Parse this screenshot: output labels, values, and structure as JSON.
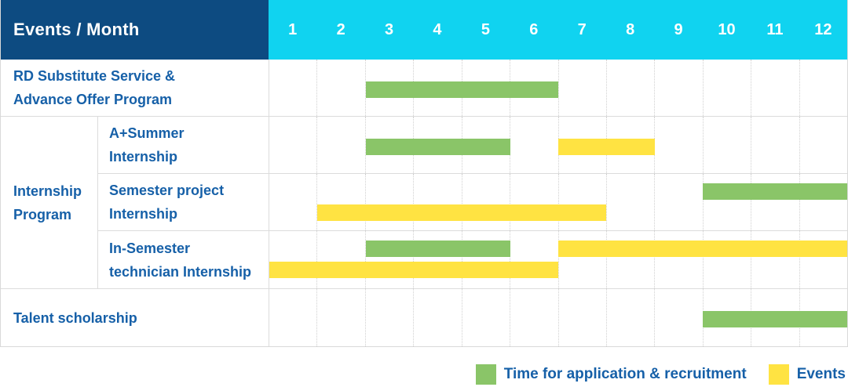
{
  "colors": {
    "header_bg": "#0d4b81",
    "months_bg": "#10d3f0",
    "label_text": "#1660a8",
    "green": "#8ac568",
    "yellow": "#ffe342",
    "grid": "#dcdcdc"
  },
  "header": {
    "title": "Events / Month",
    "months": [
      "1",
      "2",
      "3",
      "4",
      "5",
      "6",
      "7",
      "8",
      "9",
      "10",
      "11",
      "12"
    ]
  },
  "table": {
    "row_labels": {
      "rd": "RD Substitute Service &\nAdvance Offer Program",
      "internship_group": "Internship\nProgram",
      "a_plus_summer": "A+Summer\nInternship",
      "semester_project": "Semester project\nInternship",
      "in_semester": "In-Semester\ntechnician Internship",
      "talent": "Talent scholarship"
    }
  },
  "legend": {
    "items": [
      {
        "color": "green",
        "label": "Time for application & recruitment"
      },
      {
        "color": "yellow",
        "label": "Events"
      }
    ]
  },
  "chart_data": {
    "type": "gantt",
    "x_unit": "month",
    "x_range": [
      1,
      12
    ],
    "legend": {
      "green": "Time for application & recruitment",
      "yellow": "Events"
    },
    "tasks": [
      {
        "name": "RD Substitute Service & Advance Offer Program",
        "group": null,
        "bars": [
          {
            "kind": "application",
            "color": "green",
            "months": [
              3,
              6
            ],
            "lane": "single"
          }
        ]
      },
      {
        "name": "A+Summer Internship",
        "group": "Internship Program",
        "bars": [
          {
            "kind": "application",
            "color": "green",
            "months": [
              3,
              5
            ],
            "lane": "single"
          },
          {
            "kind": "event",
            "color": "yellow",
            "months": [
              7,
              8
            ],
            "lane": "single"
          }
        ]
      },
      {
        "name": "Semester project Internship",
        "group": "Internship Program",
        "bars": [
          {
            "kind": "application",
            "color": "green",
            "months": [
              10,
              12
            ],
            "lane": "top"
          },
          {
            "kind": "event",
            "color": "yellow",
            "months": [
              2,
              7
            ],
            "lane": "bottom"
          }
        ]
      },
      {
        "name": "In-Semester technician Internship",
        "group": "Internship Program",
        "bars": [
          {
            "kind": "application",
            "color": "green",
            "months": [
              3,
              5
            ],
            "lane": "top"
          },
          {
            "kind": "event",
            "color": "yellow",
            "months": [
              7,
              12
            ],
            "lane": "top"
          },
          {
            "kind": "event",
            "color": "yellow",
            "months": [
              1,
              6
            ],
            "lane": "bottom"
          }
        ]
      },
      {
        "name": "Talent scholarship",
        "group": null,
        "bars": [
          {
            "kind": "application",
            "color": "green",
            "months": [
              10,
              12
            ],
            "lane": "single"
          }
        ]
      }
    ]
  }
}
